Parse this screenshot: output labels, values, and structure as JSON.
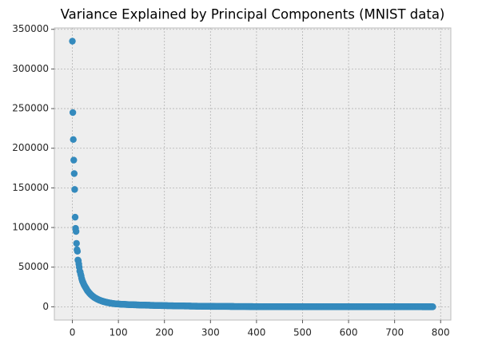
{
  "chart_data": {
    "type": "scatter",
    "title": "Variance Explained by Principal Components (MNIST data)",
    "color": "#348abd",
    "grid": true,
    "xlim": [
      -39.15,
      822.15
    ],
    "ylim": [
      -16750,
      351750
    ],
    "xticks": [
      0,
      100,
      200,
      300,
      400,
      500,
      600,
      700,
      800
    ],
    "yticks": [
      0,
      50000,
      100000,
      150000,
      200000,
      250000,
      300000,
      350000
    ],
    "x": [
      0,
      1,
      2,
      3,
      4,
      5,
      6,
      7,
      8,
      9,
      10,
      11,
      12,
      13,
      14,
      15,
      16,
      17,
      18,
      19,
      20,
      21,
      22,
      23,
      24,
      25,
      26,
      27,
      28,
      29,
      30,
      31,
      32,
      33,
      34,
      35,
      36,
      37,
      38,
      39,
      40,
      41,
      42,
      43,
      44,
      45,
      46,
      47,
      48,
      49,
      50,
      51,
      52,
      53,
      54,
      55,
      56,
      57,
      58,
      59,
      60,
      61,
      62,
      63,
      64,
      65,
      66,
      67,
      68,
      69,
      70,
      71,
      72,
      73,
      74,
      75,
      76,
      77,
      78,
      79,
      80,
      81,
      82,
      83,
      84,
      85,
      86,
      87,
      88,
      89,
      90,
      91,
      92,
      93,
      94,
      95,
      96,
      97,
      98,
      99,
      100,
      101,
      102,
      103,
      104,
      105,
      106,
      107,
      108,
      109,
      110,
      111,
      112,
      113,
      114,
      115,
      116,
      117,
      118,
      119,
      120,
      121,
      122,
      123,
      124,
      125,
      126,
      127,
      128,
      129,
      130,
      131,
      132,
      133,
      134,
      135,
      136,
      137,
      138,
      139,
      140,
      141,
      142,
      143,
      144,
      145,
      146,
      147,
      148,
      149,
      150,
      151,
      152,
      153,
      154,
      155,
      156,
      157,
      158,
      159,
      160,
      161,
      162,
      163,
      164,
      165,
      166,
      167,
      168,
      169,
      170,
      171,
      172,
      173,
      174,
      175,
      176,
      177,
      178,
      179,
      180,
      181,
      182,
      183,
      184,
      185,
      186,
      187,
      188,
      189,
      190,
      191,
      192,
      193,
      194,
      195,
      196,
      197,
      198,
      199,
      200,
      201,
      202,
      203,
      204,
      205,
      206,
      207,
      208,
      209,
      210,
      211,
      212,
      213,
      214,
      215,
      216,
      217,
      218,
      219,
      220,
      221,
      222,
      223,
      224,
      225,
      226,
      227,
      228,
      229,
      230,
      231,
      232,
      233,
      234,
      235,
      236,
      237,
      238,
      239,
      240,
      241,
      242,
      243,
      244,
      245,
      246,
      247,
      248,
      249,
      250,
      251,
      252,
      253,
      254,
      255,
      256,
      257,
      258,
      259,
      260,
      261,
      262,
      263,
      264,
      265,
      266,
      267,
      268,
      269,
      270,
      271,
      272,
      273,
      274,
      275,
      276,
      277,
      278,
      279,
      280,
      281,
      282,
      283,
      284,
      285,
      286,
      287,
      288,
      289,
      290,
      291,
      292,
      293,
      294,
      295,
      296,
      297,
      298,
      299,
      300,
      301,
      302,
      303,
      304,
      305,
      306,
      307,
      308,
      309,
      310,
      311,
      312,
      313,
      314,
      315,
      316,
      317,
      318,
      319,
      320,
      321,
      322,
      323,
      324,
      325,
      326,
      327,
      328,
      329,
      330,
      331,
      332,
      333,
      334,
      335,
      336,
      337,
      338,
      339,
      340,
      341,
      342,
      343,
      344,
      345,
      346,
      347,
      348,
      349,
      350,
      351,
      352,
      353,
      354,
      355,
      356,
      357,
      358,
      359,
      360,
      361,
      362,
      363,
      364,
      365,
      366,
      367,
      368,
      369,
      370,
      371,
      372,
      373,
      374,
      375,
      376,
      377,
      378,
      379,
      380,
      381,
      382,
      383,
      384,
      385,
      386,
      387,
      388,
      389,
      390,
      391,
      392,
      393,
      394,
      395,
      396,
      397,
      398,
      399,
      400,
      401,
      402,
      403,
      404,
      405,
      406,
      407,
      408,
      409,
      410,
      411,
      412,
      413,
      414,
      415,
      416,
      417,
      418,
      419,
      420,
      421,
      422,
      423,
      424,
      425,
      426,
      427,
      428,
      429,
      430,
      431,
      432,
      433,
      434,
      435,
      436,
      437,
      438,
      439,
      440,
      441,
      442,
      443,
      444,
      445,
      446,
      447,
      448,
      449,
      450,
      451,
      452,
      453,
      454,
      455,
      456,
      457,
      458,
      459,
      460,
      461,
      462,
      463,
      464,
      465,
      466,
      467,
      468,
      469,
      470,
      471,
      472,
      473,
      474,
      475,
      476,
      477,
      478,
      479,
      480,
      481,
      482,
      483,
      484,
      485,
      486,
      487,
      488,
      489,
      490,
      491,
      492,
      493,
      494,
      495,
      496,
      497,
      498,
      499,
      500,
      501,
      502,
      503,
      504,
      505,
      506,
      507,
      508,
      509,
      510,
      511,
      512,
      513,
      514,
      515,
      516,
      517,
      518,
      519,
      520,
      521,
      522,
      523,
      524,
      525,
      526,
      527,
      528,
      529,
      530,
      531,
      532,
      533,
      534,
      535,
      536,
      537,
      538,
      539,
      540,
      541,
      542,
      543,
      544,
      545,
      546,
      547,
      548,
      549,
      550,
      551,
      552,
      553,
      554,
      555,
      556,
      557,
      558,
      559,
      560,
      561,
      562,
      563,
      564,
      565,
      566,
      567,
      568,
      569,
      570,
      571,
      572,
      573,
      574,
      575,
      576,
      577,
      578,
      579,
      580,
      581,
      582,
      583,
      584,
      585,
      586,
      587,
      588,
      589,
      590,
      591,
      592,
      593,
      594,
      595,
      596,
      597,
      598,
      599,
      600,
      601,
      602,
      603,
      604,
      605,
      606,
      607,
      608,
      609,
      610,
      611,
      612,
      613,
      614,
      615,
      616,
      617,
      618,
      619,
      620,
      621,
      622,
      623,
      624,
      625,
      626,
      627,
      628,
      629,
      630,
      631,
      632,
      633,
      634,
      635,
      636,
      637,
      638,
      639,
      640,
      641,
      642,
      643,
      644,
      645,
      646,
      647,
      648,
      649,
      650,
      651,
      652,
      653,
      654,
      655,
      656,
      657,
      658,
      659,
      660,
      661,
      662,
      663,
      664,
      665,
      666,
      667,
      668,
      669,
      670,
      671,
      672,
      673,
      674,
      675,
      676,
      677,
      678,
      679,
      680,
      681,
      682,
      683,
      684,
      685,
      686,
      687,
      688,
      689,
      690,
      691,
      692,
      693,
      694,
      695,
      696,
      697,
      698,
      699,
      700,
      701,
      702,
      703,
      704,
      705,
      706,
      707,
      708,
      709,
      710,
      711,
      712,
      713,
      714,
      715,
      716,
      717,
      718,
      719,
      720,
      721,
      722,
      723,
      724,
      725,
      726,
      727,
      728,
      729,
      730,
      731,
      732,
      733,
      734,
      735,
      736,
      737,
      738,
      739,
      740,
      741,
      742,
      743,
      744,
      745,
      746,
      747,
      748,
      749,
      750,
      751,
      752,
      753,
      754,
      755,
      756,
      757,
      758,
      759,
      760,
      761,
      762,
      763,
      764,
      765,
      766,
      767,
      768,
      769,
      770,
      771,
      772,
      773,
      774,
      775,
      776,
      777,
      778,
      779,
      780,
      781,
      782,
      783
    ],
    "values": [
      335000,
      245000,
      211000,
      185000,
      168000,
      148000,
      113000,
      99000,
      95000,
      80000,
      72000,
      70000,
      59000,
      58000,
      54000,
      50000,
      45000,
      44000,
      41000,
      39000,
      36000,
      34000,
      32000,
      31000,
      29500,
      28000,
      27000,
      26000,
      25000,
      24000,
      23000,
      22000,
      21000,
      20000,
      19500,
      18800,
      18000,
      17300,
      16700,
      16000,
      15400,
      14900,
      14400,
      13900,
      13400,
      12900,
      12500,
      12100,
      11700,
      11300,
      11000,
      10600,
      10300,
      10000,
      9700,
      9400,
      9100,
      8800,
      8600,
      8300,
      8100,
      7900,
      7700,
      7500,
      7300,
      7100,
      6900,
      6700,
      6500,
      6400,
      6200,
      6100,
      5900,
      5800,
      5600,
      5500,
      5400,
      5300,
      5100,
      5000,
      4900,
      4800,
      4700,
      4600,
      4500,
      4400,
      4300,
      4200,
      4100,
      4000,
      3950,
      3900,
      3850,
      3800,
      3750,
      3700,
      3650,
      3600,
      3550,
      3500,
      3450,
      3410,
      3370,
      3330,
      3290,
      3250,
      3220,
      3190,
      3160,
      3130,
      3100,
      3070,
      3040,
      3010,
      2980,
      2950,
      2920,
      2890,
      2860,
      2830,
      2800,
      2770,
      2740,
      2710,
      2680,
      2660,
      2640,
      2620,
      2600,
      2580,
      2560,
      2540,
      2520,
      2500,
      2480,
      2460,
      2440,
      2420,
      2400,
      2380,
      2360,
      2340,
      2320,
      2300,
      2280,
      2260,
      2240,
      2220,
      2200,
      2180,
      2160,
      2140,
      2120,
      2100,
      2085,
      2070,
      2055,
      2040,
      2025,
      2010,
      1995,
      1980,
      1965,
      1950,
      1935,
      1920,
      1905,
      1890,
      1875,
      1860,
      1845,
      1830,
      1815,
      1800,
      1785,
      1770,
      1755,
      1740,
      1725,
      1710,
      1695,
      1680,
      1665,
      1650,
      1635,
      1620,
      1605,
      1590,
      1575,
      1560,
      1545,
      1530,
      1515,
      1500,
      1490,
      1480,
      1470,
      1460,
      1450,
      1440,
      1430,
      1420,
      1410,
      1400,
      1390,
      1380,
      1370,
      1360,
      1350,
      1340,
      1330,
      1320,
      1310,
      1300,
      1290,
      1280,
      1270,
      1260,
      1250,
      1240,
      1230,
      1220,
      1210,
      1200,
      1190,
      1180,
      1170,
      1160,
      1150,
      1140,
      1130,
      1120,
      1110,
      1100,
      1090,
      1080,
      1070,
      1060,
      1050,
      1040,
      1030,
      1020,
      1010,
      1000,
      990,
      980,
      970,
      960,
      950,
      940,
      930,
      920,
      910,
      900,
      890,
      880,
      870,
      860,
      850,
      840,
      830,
      820,
      810,
      800,
      792,
      784,
      776,
      768,
      760,
      752,
      744,
      736,
      728,
      720,
      712,
      704,
      696,
      688,
      680,
      672,
      664,
      656,
      648,
      640,
      632,
      624,
      616,
      608,
      600,
      592,
      584,
      576,
      568,
      560,
      552,
      544,
      536,
      528,
      520,
      512,
      505,
      502,
      499,
      496,
      493,
      490,
      487,
      484,
      481,
      478,
      475,
      472,
      469,
      466,
      463,
      460,
      457,
      454,
      451,
      448,
      445,
      442,
      439,
      436,
      433,
      430,
      427,
      424,
      421,
      418,
      415,
      412,
      409,
      406,
      403,
      400,
      397,
      394,
      391,
      388,
      385,
      382,
      379,
      376,
      373,
      370,
      367,
      364,
      361,
      358,
      355,
      352,
      349,
      346,
      343,
      340,
      337,
      334,
      331,
      328,
      325,
      322,
      319,
      316,
      313,
      310,
      307,
      304,
      301,
      298,
      295,
      292,
      289,
      286,
      283,
      280,
      277,
      274,
      271,
      268,
      265,
      262,
      259,
      256,
      253,
      250,
      247,
      244,
      241,
      238,
      235,
      232,
      229,
      226,
      223,
      220,
      217,
      214,
      211,
      208,
      206,
      205,
      204,
      203,
      202,
      201,
      200,
      199,
      198,
      197,
      196,
      195,
      194,
      193,
      192,
      191,
      190,
      189,
      188,
      187,
      186,
      185,
      184,
      183,
      182,
      181,
      180,
      179,
      178,
      177,
      176,
      175,
      174,
      173,
      172,
      171,
      170,
      169,
      168,
      167,
      166,
      165,
      164,
      163,
      162,
      161,
      160,
      159,
      158,
      157,
      156,
      155,
      154,
      153,
      152,
      151,
      150,
      149,
      148,
      147,
      146,
      145,
      144,
      143,
      142,
      141,
      140,
      139,
      138,
      137,
      136,
      135,
      134,
      133,
      132,
      131,
      130,
      129,
      128,
      127,
      126,
      125,
      124,
      123,
      122,
      121,
      120,
      119,
      118,
      117,
      116,
      115,
      114,
      113,
      112,
      111,
      110,
      109,
      108,
      107,
      105,
      104,
      103,
      102,
      101,
      100,
      99,
      98,
      97,
      96,
      95,
      94,
      93,
      92,
      91,
      90,
      89,
      88,
      87,
      86,
      85,
      84,
      83,
      82,
      81,
      80,
      79,
      78,
      77,
      76,
      75,
      74,
      73,
      72,
      71,
      70,
      69,
      68,
      67,
      66,
      65,
      64,
      63,
      62,
      61,
      60,
      59,
      58,
      57,
      56,
      55,
      54,
      53,
      52,
      51,
      50,
      49,
      48,
      47,
      46,
      45,
      44,
      43,
      42,
      41,
      40,
      39,
      38,
      37,
      36,
      35,
      34,
      33,
      32,
      31,
      30,
      29,
      28,
      27,
      26,
      25,
      24,
      23,
      22,
      21,
      20,
      19,
      18,
      17,
      16,
      15,
      14,
      13,
      12,
      11,
      10,
      9,
      8,
      7,
      6,
      5,
      5,
      5,
      5,
      5,
      5,
      5,
      5,
      5,
      5,
      5,
      5,
      5,
      5,
      5,
      5,
      5,
      5,
      5,
      5,
      5,
      5,
      5,
      5,
      5,
      5,
      5,
      5,
      5,
      5,
      5,
      5,
      5,
      5,
      5,
      5,
      5,
      5,
      5,
      5,
      4,
      4,
      4,
      4,
      4,
      4,
      4,
      4,
      4,
      4,
      4,
      4,
      4,
      4,
      4,
      4,
      4,
      4,
      4,
      4,
      4,
      4,
      4,
      4,
      4,
      4,
      4,
      4,
      4,
      4,
      4,
      4,
      4,
      4,
      4,
      4,
      4,
      4,
      4,
      4,
      4,
      4,
      4,
      4,
      4,
      4,
      4,
      4,
      4,
      4,
      3,
      3,
      3,
      3,
      3,
      3,
      3,
      3,
      3,
      3,
      3,
      3,
      3,
      3,
      3,
      3,
      3,
      3,
      3,
      3,
      3,
      3,
      3,
      3,
      3,
      3,
      3,
      3,
      3,
      3,
      3,
      3,
      3,
      3,
      3,
      3,
      3,
      3,
      3,
      3,
      2,
      2,
      2,
      2,
      2,
      2,
      2,
      2,
      2,
      2,
      2,
      2,
      2,
      2,
      2,
      2,
      2,
      2,
      2,
      2,
      2,
      2,
      2,
      2,
      2,
      2,
      2,
      2,
      2,
      2,
      1,
      1,
      1,
      1,
      1,
      1,
      1,
      1,
      1,
      1,
      1,
      1,
      1,
      1,
      0,
      0,
      0,
      0,
      0,
      0,
      0,
      0,
      0,
      0
    ]
  }
}
